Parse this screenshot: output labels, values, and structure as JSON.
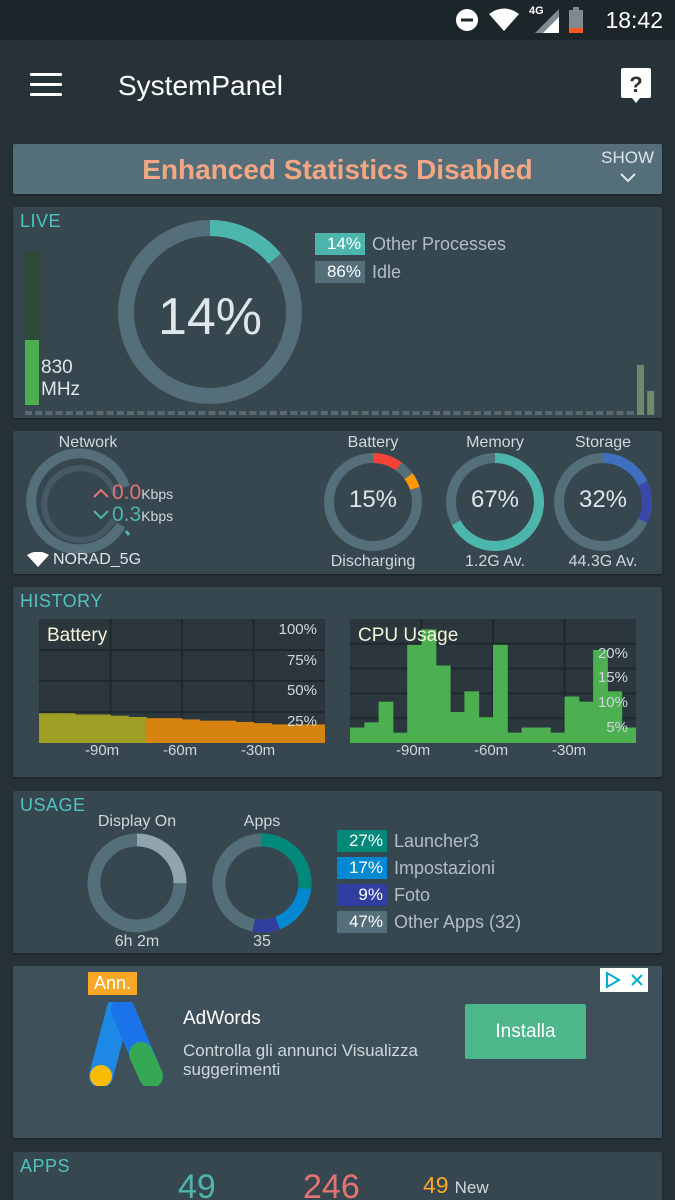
{
  "status_bar": {
    "time": "18:42",
    "network_type": "4G",
    "icons": [
      "do-not-disturb-icon",
      "wifi-icon",
      "signal-icon",
      "battery-icon"
    ]
  },
  "app_bar": {
    "title": "SystemPanel",
    "menu_icon": "hamburger-menu-icon",
    "help_icon": "help-bubble-icon"
  },
  "banner": {
    "message": "Enhanced Statistics Disabled",
    "action": "SHOW"
  },
  "live": {
    "label": "LIVE",
    "cpu_percent_text": "14%",
    "cpu_fraction": 0.14,
    "frequency_value": "830",
    "frequency_unit": "MHz",
    "frequency_fraction": 0.42,
    "legend": [
      {
        "pct": "14%",
        "label": "Other Processes",
        "color": "#4db6ac"
      },
      {
        "pct": "86%",
        "label": "Idle",
        "color": "#546e7a"
      }
    ]
  },
  "stats": {
    "network": {
      "label": "Network",
      "up": "0.0",
      "down": "0.3",
      "unit": "Kbps",
      "ssid": "NORAD_5G"
    },
    "battery": {
      "label": "Battery",
      "value": "15%",
      "sub": "Discharging",
      "fraction": 0.15
    },
    "memory": {
      "label": "Memory",
      "value": "67%",
      "sub": "1.2G Av.",
      "fraction": 0.67
    },
    "storage": {
      "label": "Storage",
      "value": "32%",
      "sub": "44.3G Av.",
      "fraction": 0.32
    }
  },
  "history": {
    "label": "HISTORY",
    "battery_chart": {
      "title": "Battery",
      "y_ticks": [
        "100%",
        "75%",
        "50%",
        "25%"
      ],
      "x_ticks": [
        "-90m",
        "-60m",
        "-30m"
      ],
      "values": [
        24,
        24,
        23,
        23,
        22,
        21,
        20,
        20,
        19,
        18,
        18,
        17,
        16,
        15,
        15,
        15
      ]
    },
    "cpu_chart": {
      "title": "CPU Usage",
      "y_ticks": [
        "20%",
        "15%",
        "10%",
        "5%"
      ],
      "x_ticks": [
        "-90m",
        "-60m",
        "-30m"
      ],
      "values": [
        3,
        4,
        8,
        2,
        19,
        22,
        15,
        6,
        10,
        5,
        19,
        2,
        3,
        3,
        2,
        9,
        8,
        18,
        10,
        3
      ]
    }
  },
  "usage": {
    "label": "USAGE",
    "display_on": {
      "label": "Display On",
      "value": "6h 2m",
      "fraction": 0.25
    },
    "apps": {
      "label": "Apps",
      "value": "35"
    },
    "legend": [
      {
        "pct": "27%",
        "label": "Launcher3",
        "color": "#00897b"
      },
      {
        "pct": "17%",
        "label": "Impostazioni",
        "color": "#0288d1"
      },
      {
        "pct": "9%",
        "label": "Foto",
        "color": "#303f9f"
      },
      {
        "pct": "47%",
        "label": "Other Apps (32)",
        "color": "#546e7a"
      }
    ]
  },
  "ad": {
    "badge": "Ann.",
    "title": "AdWords",
    "description": "Controlla gli annunci Visualizza suggerimenti",
    "button": "Installa"
  },
  "apps": {
    "label": "APPS",
    "count1": "49",
    "count2": "246",
    "new_count": "49",
    "new_label": "New"
  }
}
